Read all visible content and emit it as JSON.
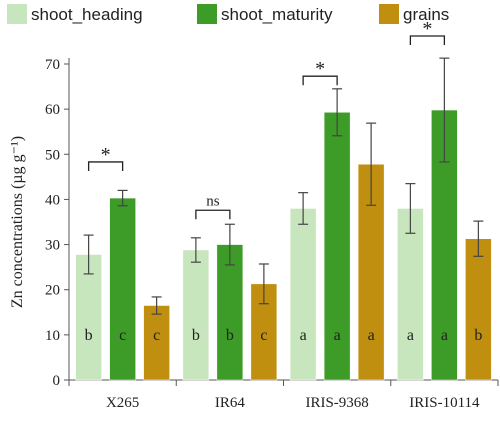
{
  "chart_data": {
    "type": "bar",
    "categories": [
      "X265",
      "IR64",
      "IRIS-9368",
      "IRIS-10114"
    ],
    "ylabel": "Zn concentrations (µg g⁻¹)",
    "ylim": [
      0,
      70
    ],
    "yticks": [
      "0",
      "10",
      "20",
      "30",
      "40",
      "50",
      "60",
      "70"
    ],
    "grid": false,
    "legend_position": "top",
    "series": [
      {
        "name": "shoot_heading",
        "color": "#c8e6bd",
        "values": [
          27.8,
          28.8,
          38.0,
          38.0
        ],
        "errors": [
          4.3,
          2.7,
          3.5,
          5.5
        ],
        "letters": [
          "b",
          "b",
          "a",
          "a"
        ]
      },
      {
        "name": "shoot_maturity",
        "color": "#3d9b27",
        "values": [
          40.3,
          30.0,
          59.3,
          59.8
        ],
        "errors": [
          1.7,
          4.5,
          5.2,
          11.5
        ],
        "letters": [
          "c",
          "b",
          "a",
          "a"
        ]
      },
      {
        "name": "grains",
        "color": "#c08f10",
        "values": [
          16.5,
          21.3,
          47.8,
          31.3
        ],
        "errors": [
          1.9,
          4.4,
          9.1,
          3.9
        ],
        "letters": [
          "c",
          "c",
          "a",
          "b"
        ]
      }
    ],
    "annotations": [
      {
        "category": 0,
        "text": "*",
        "bracket_y": 48.3
      },
      {
        "category": 1,
        "text": "ns",
        "bracket_y": 37.6
      },
      {
        "category": 2,
        "text": "*",
        "bracket_y": 67.3
      },
      {
        "category": 3,
        "text": "*",
        "bracket_y": 76.2
      }
    ]
  }
}
